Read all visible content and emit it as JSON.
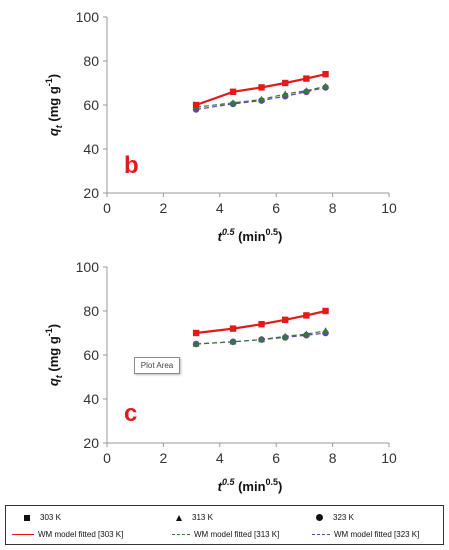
{
  "chart_data": [
    {
      "type": "line",
      "panel_label": "b",
      "xlabel_base": "t",
      "xlabel_sup": "0.5",
      "xlabel_unit": " (min",
      "xlabel_unit_sup": "0.5",
      "xlabel_close": ")",
      "ylabel_base": "q",
      "ylabel_sub": "t",
      "ylabel_unit": " (mg g",
      "ylabel_unit_sup": "-1",
      "ylabel_close": ")",
      "xlim": [
        0,
        10
      ],
      "ylim": [
        20,
        100
      ],
      "xticks": [
        "0",
        "2",
        "4",
        "6",
        "8",
        "10"
      ],
      "yticks": [
        "20",
        "40",
        "60",
        "80",
        "100"
      ],
      "x": [
        3.16,
        4.47,
        5.48,
        6.32,
        7.07,
        7.75
      ],
      "series": [
        {
          "name": "303 K",
          "values": [
            60,
            66,
            68,
            70,
            72,
            74
          ],
          "color": "#e31a1c",
          "marker": "square"
        },
        {
          "name": "313 K",
          "values": [
            59,
            61,
            62.5,
            65,
            66.5,
            68.5
          ],
          "color": "#2e7d32",
          "marker": "triangle"
        },
        {
          "name": "323 K",
          "values": [
            58,
            60.5,
            62,
            64,
            66,
            68
          ],
          "color": "#6a3fb5",
          "marker": "circle"
        }
      ]
    },
    {
      "type": "line",
      "panel_label": "c",
      "xlabel_base": "t",
      "xlabel_sup": "0.5",
      "xlabel_unit": " (min",
      "xlabel_unit_sup": "0.5",
      "xlabel_close": ")",
      "ylabel_base": "q",
      "ylabel_sub": "t",
      "ylabel_unit": " (mg g",
      "ylabel_unit_sup": "-1",
      "ylabel_close": ")",
      "xlim": [
        0,
        10
      ],
      "ylim": [
        20,
        100
      ],
      "xticks": [
        "0",
        "2",
        "4",
        "6",
        "8",
        "10"
      ],
      "yticks": [
        "20",
        "40",
        "60",
        "80",
        "100"
      ],
      "x": [
        3.16,
        4.47,
        5.48,
        6.32,
        7.07,
        7.75
      ],
      "series": [
        {
          "name": "303 K",
          "values": [
            70,
            72,
            74,
            76,
            78,
            80
          ],
          "color": "#e31a1c",
          "marker": "square"
        },
        {
          "name": "313 K",
          "values": [
            65,
            66,
            67,
            68.5,
            69.5,
            71
          ],
          "color": "#2e7d32",
          "marker": "triangle"
        },
        {
          "name": "323 K",
          "values": [
            65,
            66,
            67,
            68,
            69,
            70
          ],
          "color": "#6a3fb5",
          "marker": "circle"
        }
      ]
    }
  ],
  "tooltip": "Plot Area",
  "legend": {
    "markers": [
      {
        "label": "303 K",
        "marker": "square"
      },
      {
        "label": "313 K",
        "marker": "triangle"
      },
      {
        "label": "323 K",
        "marker": "circle"
      }
    ],
    "lines": [
      {
        "label": "WM model fitted [303 K]",
        "color": "#e31a1c",
        "style": "solid"
      },
      {
        "label": "WM model fitted [313 K]",
        "color": "#2e7d32",
        "style": "dashed"
      },
      {
        "label": "WM model fitted [323 K]",
        "color": "#6a3fb5",
        "style": "dashed"
      }
    ]
  }
}
